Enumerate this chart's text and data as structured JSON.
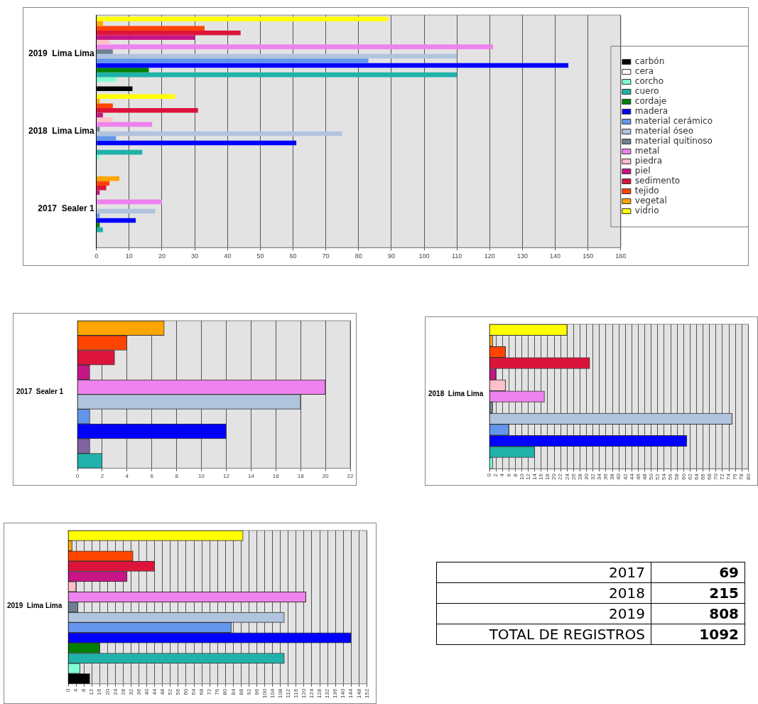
{
  "chart_data": [
    {
      "type": "bar",
      "orientation": "horizontal",
      "categories": [
        "2019  Lima Lima",
        "2018  Lima Lima",
        "2017  Sealer 1"
      ],
      "xlim": [
        0,
        160
      ],
      "xticks": [
        0,
        10,
        20,
        30,
        40,
        50,
        60,
        70,
        80,
        90,
        100,
        110,
        120,
        130,
        140,
        150,
        160
      ],
      "grid": "x",
      "legend": "right",
      "series": [
        {
          "name": "carbón",
          "color": "#000000",
          "values": [
            11,
            null,
            null
          ]
        },
        {
          "name": "cera",
          "color": "#ffffff",
          "values": [
            null,
            null,
            null
          ]
        },
        {
          "name": "corcho",
          "color": "#7fffd4",
          "values": [
            6,
            1,
            null
          ]
        },
        {
          "name": "cuero",
          "color": "#20b2aa",
          "values": [
            110,
            14,
            2
          ]
        },
        {
          "name": "cordaje",
          "color": "#008000",
          "values": [
            16,
            null,
            1
          ]
        },
        {
          "name": "madera",
          "color": "#0000ff",
          "values": [
            144,
            61,
            12
          ]
        },
        {
          "name": "material cerámico",
          "color": "#6495ed",
          "values": [
            83,
            6,
            1
          ]
        },
        {
          "name": "material óseo",
          "color": "#b0c4de",
          "values": [
            110,
            75,
            18
          ]
        },
        {
          "name": "material quitinoso",
          "color": "#708090",
          "values": [
            5,
            1,
            null
          ]
        },
        {
          "name": "metal",
          "color": "#ee82ee",
          "values": [
            121,
            17,
            20
          ]
        },
        {
          "name": "piedra",
          "color": "#ffc0cb",
          "values": [
            4,
            5,
            null
          ]
        },
        {
          "name": "piel",
          "color": "#c71585",
          "values": [
            30,
            2,
            1
          ]
        },
        {
          "name": "sedimento",
          "color": "#dc143c",
          "values": [
            44,
            31,
            3
          ]
        },
        {
          "name": "tejido",
          "color": "#ff4500",
          "values": [
            33,
            5,
            4
          ]
        },
        {
          "name": "vegetal",
          "color": "#ffa500",
          "values": [
            2,
            1,
            7
          ]
        },
        {
          "name": "vidrio",
          "color": "#ffff00",
          "values": [
            89,
            24,
            null
          ]
        }
      ]
    },
    {
      "type": "bar",
      "orientation": "horizontal",
      "ylabel": "2017  Sealer 1",
      "categories": [
        null,
        null,
        null,
        null,
        null,
        null,
        null,
        null,
        null,
        null
      ],
      "values": [
        7,
        4,
        3,
        1,
        20,
        18,
        1,
        12,
        1,
        2
      ],
      "colors": [
        "#ffa500",
        "#ff4500",
        "#dc143c",
        "#c71585",
        "#ee82ee",
        "#b0c4de",
        "#6495ed",
        "#0000ff",
        "#8064a2",
        "#20b2aa"
      ],
      "xlim": [
        0,
        22
      ],
      "xticks": [
        0,
        2,
        4,
        6,
        8,
        10,
        12,
        14,
        16,
        18,
        20,
        22
      ],
      "grid": "x"
    },
    {
      "type": "bar",
      "orientation": "horizontal",
      "ylabel": "2018  Lima Lima",
      "categories": [
        null,
        null,
        null,
        null,
        null,
        null,
        null,
        null,
        null,
        null,
        null,
        null,
        null
      ],
      "values": [
        24,
        1,
        5,
        31,
        2,
        5,
        17,
        1,
        75,
        6,
        61,
        14,
        1
      ],
      "colors": [
        "#ffff00",
        "#ffa500",
        "#ff4500",
        "#dc143c",
        "#c71585",
        "#ffc0cb",
        "#ee82ee",
        "#708090",
        "#b0c4de",
        "#6495ed",
        "#0000ff",
        "#20b2aa",
        "#7fffd4"
      ],
      "xlim": [
        0,
        80
      ],
      "xticks": [
        0,
        2,
        4,
        6,
        8,
        10,
        12,
        14,
        16,
        18,
        20,
        22,
        24,
        26,
        28,
        30,
        32,
        34,
        36,
        38,
        40,
        42,
        44,
        46,
        48,
        50,
        52,
        54,
        56,
        58,
        60,
        62,
        64,
        66,
        68,
        70,
        72,
        74,
        76,
        78,
        80
      ],
      "grid": "x"
    },
    {
      "type": "bar",
      "orientation": "horizontal",
      "ylabel": "2019  Lima Lima",
      "categories": [
        null,
        null,
        null,
        null,
        null,
        null,
        null,
        null,
        null,
        null,
        null,
        null,
        null,
        null,
        null
      ],
      "values": [
        89,
        2,
        33,
        44,
        30,
        4,
        121,
        5,
        110,
        83,
        144,
        16,
        110,
        6,
        11
      ],
      "colors": [
        "#ffff00",
        "#ffa500",
        "#ff4500",
        "#dc143c",
        "#c71585",
        "#ffc0cb",
        "#ee82ee",
        "#708090",
        "#b0c4de",
        "#6495ed",
        "#0000ff",
        "#008000",
        "#20b2aa",
        "#7fffd4",
        "#000000"
      ],
      "xlim": [
        0,
        152
      ],
      "xticks": [
        0,
        4,
        8,
        12,
        16,
        20,
        24,
        28,
        32,
        36,
        40,
        44,
        48,
        52,
        56,
        60,
        64,
        68,
        72,
        76,
        80,
        84,
        88,
        92,
        96,
        100,
        104,
        108,
        112,
        116,
        120,
        124,
        128,
        132,
        136,
        140,
        144,
        148,
        152
      ],
      "grid": "x"
    },
    {
      "type": "other",
      "categories": [
        "2017",
        "2018",
        "2019",
        "TOTAL DE REGISTROS"
      ],
      "values": [
        69,
        215,
        808,
        1092
      ],
      "data_labels": true
    }
  ]
}
